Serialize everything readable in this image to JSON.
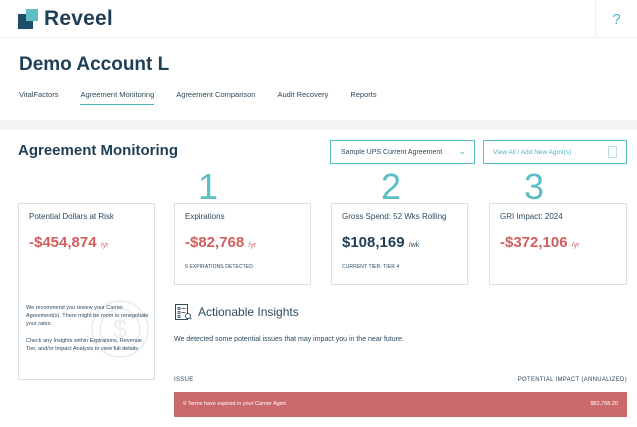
{
  "app": {
    "name": "Reveel",
    "help": "?"
  },
  "account": "Demo Account L",
  "nav": [
    {
      "label": "VitalFactors",
      "active": false
    },
    {
      "label": "Agreement Monitoring",
      "active": true
    },
    {
      "label": "Agreement Comparison",
      "active": false
    },
    {
      "label": "Audit Recovery",
      "active": false
    },
    {
      "label": "Reports",
      "active": false
    }
  ],
  "page_title": "Agreement Monitoring",
  "agreement_select": {
    "value": "Sample UPS Current Agreement"
  },
  "view_all_button": "View All / Add New Agmt(s)",
  "step_numbers": [
    "1",
    "2",
    "3"
  ],
  "dollars_at_risk": {
    "label": "Potential Dollars at Risk",
    "value": "-$454,874",
    "unit": "/yr",
    "note1": "We recommend you review your Carrier Agreement(s). There might be room to renegotiate your rates.",
    "note2": "Check any Insights within Expirations, Revenue Tier, and/or Impact Analysis to view full details"
  },
  "cards": [
    {
      "label": "Expirations",
      "value": "-$82,768",
      "unit": "/yr",
      "sub": "9 EXPIRATIONS DETECTED"
    },
    {
      "label": "Gross Spend: 52 Wks Rolling",
      "value": "$108,169",
      "unit": "/wk",
      "sub": "CURRENT TIER: TIER 4"
    },
    {
      "label": "GRI Impact: 2024",
      "value": "-$372,106",
      "unit": "/yr",
      "sub": ""
    }
  ],
  "insights": {
    "title": "Actionable Insights",
    "description": "We detected some potential issues that may impact you in the near future:",
    "columns": {
      "issue": "ISSUE",
      "impact": "POTENTIAL IMPACT (ANNUALIZED)"
    },
    "rows": [
      {
        "issue": "9 Terms have expired in your Carrier Agmt",
        "impact": "$82,768.20"
      }
    ]
  },
  "colors": {
    "accent": "#5bbfc3",
    "navy": "#1f3f57",
    "negative": "#d25d5d",
    "alert_row": "#c9696b"
  }
}
